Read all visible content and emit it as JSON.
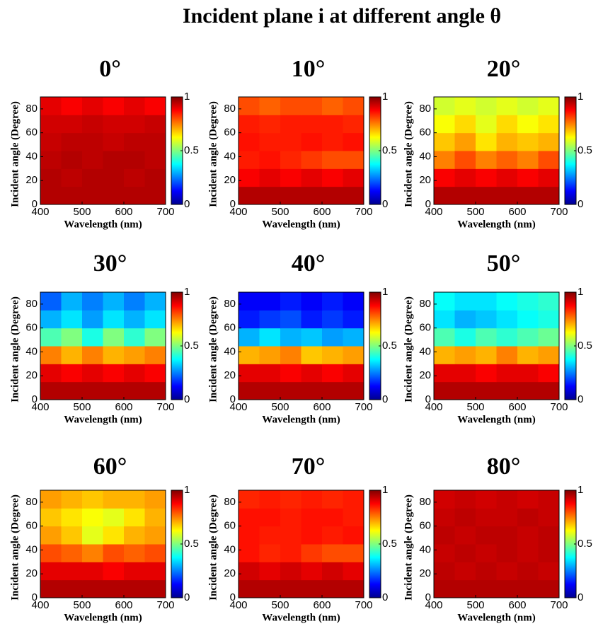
{
  "title": "Incident plane i at different angle θ",
  "chart_data": [
    {
      "type": "heatmap",
      "title": "0°",
      "xlabel": "Wavelength (nm)",
      "ylabel": "Incident angle (Degree)",
      "xlim": [
        400,
        700
      ],
      "xticks": [
        400,
        500,
        600,
        700
      ],
      "ylim": [
        0,
        90
      ],
      "yticks": [
        0,
        20,
        40,
        60,
        80
      ],
      "clim": [
        0,
        1
      ],
      "cticks": [
        0,
        0.5,
        1
      ],
      "colormap": "jet",
      "z": [
        [
          0.95,
          0.95,
          0.95,
          0.95,
          0.95,
          0.95
        ],
        [
          0.95,
          0.94,
          0.95,
          0.95,
          0.94,
          0.95
        ],
        [
          0.94,
          0.95,
          0.94,
          0.95,
          0.95,
          0.94
        ],
        [
          0.93,
          0.94,
          0.94,
          0.93,
          0.94,
          0.94
        ],
        [
          0.92,
          0.92,
          0.93,
          0.92,
          0.92,
          0.93
        ],
        [
          0.9,
          0.88,
          0.9,
          0.88,
          0.9,
          0.88
        ]
      ]
    },
    {
      "type": "heatmap",
      "title": "10°",
      "xlabel": "Wavelength (nm)",
      "ylabel": "Incident angle (Degree)",
      "xlim": [
        400,
        700
      ],
      "xticks": [
        400,
        500,
        600,
        700
      ],
      "ylim": [
        0,
        90
      ],
      "yticks": [
        0,
        20,
        40,
        60,
        80
      ],
      "clim": [
        0,
        1
      ],
      "cticks": [
        0,
        0.5,
        1
      ],
      "colormap": "jet",
      "z": [
        [
          0.95,
          0.95,
          0.95,
          0.95,
          0.95,
          0.95
        ],
        [
          0.88,
          0.9,
          0.88,
          0.9,
          0.88,
          0.9
        ],
        [
          0.85,
          0.86,
          0.84,
          0.82,
          0.8,
          0.8
        ],
        [
          0.86,
          0.85,
          0.85,
          0.86,
          0.85,
          0.86
        ],
        [
          0.85,
          0.84,
          0.85,
          0.85,
          0.85,
          0.84
        ],
        [
          0.8,
          0.78,
          0.8,
          0.8,
          0.78,
          0.8
        ]
      ]
    },
    {
      "type": "heatmap",
      "title": "20°",
      "xlabel": "Wavelength (nm)",
      "ylabel": "Incident angle (Degree)",
      "xlim": [
        400,
        700
      ],
      "xticks": [
        400,
        500,
        600,
        700
      ],
      "ylim": [
        0,
        90
      ],
      "yticks": [
        0,
        20,
        40,
        60,
        80
      ],
      "clim": [
        0,
        1
      ],
      "cticks": [
        0,
        0.5,
        1
      ],
      "colormap": "jet",
      "z": [
        [
          0.95,
          0.95,
          0.95,
          0.95,
          0.95,
          0.95
        ],
        [
          0.88,
          0.9,
          0.88,
          0.9,
          0.88,
          0.9
        ],
        [
          0.75,
          0.8,
          0.75,
          0.78,
          0.75,
          0.8
        ],
        [
          0.68,
          0.72,
          0.65,
          0.7,
          0.68,
          0.7
        ],
        [
          0.62,
          0.66,
          0.6,
          0.66,
          0.62,
          0.65
        ],
        [
          0.58,
          0.6,
          0.58,
          0.6,
          0.58,
          0.6
        ]
      ]
    },
    {
      "type": "heatmap",
      "title": "30°",
      "xlabel": "Wavelength (nm)",
      "ylabel": "Incident angle (Degree)",
      "xlim": [
        400,
        700
      ],
      "xticks": [
        400,
        500,
        600,
        700
      ],
      "ylim": [
        0,
        90
      ],
      "yticks": [
        0,
        20,
        40,
        60,
        80
      ],
      "clim": [
        0,
        1
      ],
      "cticks": [
        0,
        0.5,
        1
      ],
      "colormap": "jet",
      "z": [
        [
          0.95,
          0.95,
          0.95,
          0.95,
          0.95,
          0.95
        ],
        [
          0.9,
          0.88,
          0.9,
          0.88,
          0.9,
          0.88
        ],
        [
          0.75,
          0.7,
          0.75,
          0.7,
          0.72,
          0.75
        ],
        [
          0.45,
          0.5,
          0.4,
          0.5,
          0.42,
          0.5
        ],
        [
          0.3,
          0.35,
          0.28,
          0.35,
          0.3,
          0.35
        ],
        [
          0.22,
          0.3,
          0.25,
          0.3,
          0.25,
          0.3
        ]
      ]
    },
    {
      "type": "heatmap",
      "title": "40°",
      "xlabel": "Wavelength (nm)",
      "ylabel": "Incident angle (Degree)",
      "xlim": [
        400,
        700
      ],
      "xticks": [
        400,
        500,
        600,
        700
      ],
      "ylim": [
        0,
        90
      ],
      "yticks": [
        0,
        20,
        40,
        60,
        80
      ],
      "clim": [
        0,
        1
      ],
      "cticks": [
        0,
        0.5,
        1
      ],
      "colormap": "jet",
      "z": [
        [
          0.95,
          0.95,
          0.95,
          0.95,
          0.95,
          0.95
        ],
        [
          0.9,
          0.9,
          0.88,
          0.9,
          0.88,
          0.9
        ],
        [
          0.7,
          0.72,
          0.75,
          0.68,
          0.7,
          0.72
        ],
        [
          0.3,
          0.35,
          0.3,
          0.32,
          0.28,
          0.3
        ],
        [
          0.15,
          0.18,
          0.2,
          0.15,
          0.18,
          0.15
        ],
        [
          0.12,
          0.12,
          0.15,
          0.12,
          0.15,
          0.12
        ]
      ]
    },
    {
      "type": "heatmap",
      "title": "50°",
      "xlabel": "Wavelength (nm)",
      "ylabel": "Incident angle (Degree)",
      "xlim": [
        400,
        700
      ],
      "xticks": [
        400,
        500,
        600,
        700
      ],
      "ylim": [
        0,
        90
      ],
      "yticks": [
        0,
        20,
        40,
        60,
        80
      ],
      "clim": [
        0,
        1
      ],
      "cticks": [
        0,
        0.5,
        1
      ],
      "colormap": "jet",
      "z": [
        [
          0.95,
          0.95,
          0.95,
          0.95,
          0.95,
          0.95
        ],
        [
          0.9,
          0.9,
          0.88,
          0.9,
          0.9,
          0.88
        ],
        [
          0.7,
          0.72,
          0.7,
          0.75,
          0.7,
          0.72
        ],
        [
          0.45,
          0.4,
          0.45,
          0.42,
          0.45,
          0.48
        ],
        [
          0.35,
          0.3,
          0.32,
          0.35,
          0.38,
          0.4
        ],
        [
          0.38,
          0.35,
          0.35,
          0.38,
          0.4,
          0.42
        ]
      ]
    },
    {
      "type": "heatmap",
      "title": "60°",
      "xlabel": "Wavelength (nm)",
      "ylabel": "Incident angle (Degree)",
      "xlim": [
        400,
        700
      ],
      "xticks": [
        400,
        500,
        600,
        700
      ],
      "ylim": [
        0,
        90
      ],
      "yticks": [
        0,
        20,
        40,
        60,
        80
      ],
      "clim": [
        0,
        1
      ],
      "cticks": [
        0,
        0.5,
        1
      ],
      "colormap": "jet",
      "z": [
        [
          0.95,
          0.95,
          0.95,
          0.95,
          0.95,
          0.95
        ],
        [
          0.9,
          0.9,
          0.9,
          0.88,
          0.9,
          0.9
        ],
        [
          0.8,
          0.78,
          0.75,
          0.8,
          0.78,
          0.8
        ],
        [
          0.72,
          0.68,
          0.6,
          0.65,
          0.7,
          0.72
        ],
        [
          0.68,
          0.65,
          0.62,
          0.6,
          0.65,
          0.7
        ],
        [
          0.72,
          0.7,
          0.68,
          0.7,
          0.7,
          0.72
        ]
      ]
    },
    {
      "type": "heatmap",
      "title": "70°",
      "xlabel": "Wavelength (nm)",
      "ylabel": "Incident angle (Degree)",
      "xlim": [
        400,
        700
      ],
      "xticks": [
        400,
        500,
        600,
        700
      ],
      "ylim": [
        0,
        90
      ],
      "yticks": [
        0,
        20,
        40,
        60,
        80
      ],
      "clim": [
        0,
        1
      ],
      "cticks": [
        0,
        0.5,
        1
      ],
      "colormap": "jet",
      "z": [
        [
          0.95,
          0.95,
          0.95,
          0.95,
          0.95,
          0.95
        ],
        [
          0.92,
          0.9,
          0.92,
          0.9,
          0.92,
          0.9
        ],
        [
          0.86,
          0.84,
          0.85,
          0.82,
          0.8,
          0.8
        ],
        [
          0.86,
          0.85,
          0.85,
          0.86,
          0.85,
          0.86
        ],
        [
          0.86,
          0.86,
          0.85,
          0.86,
          0.86,
          0.85
        ],
        [
          0.84,
          0.85,
          0.84,
          0.85,
          0.84,
          0.85
        ]
      ]
    },
    {
      "type": "heatmap",
      "title": "80°",
      "xlabel": "Wavelength (nm)",
      "ylabel": "Incident angle (Degree)",
      "xlim": [
        400,
        700
      ],
      "xticks": [
        400,
        500,
        600,
        700
      ],
      "ylim": [
        0,
        90
      ],
      "yticks": [
        0,
        20,
        40,
        60,
        80
      ],
      "clim": [
        0,
        1
      ],
      "cticks": [
        0,
        0.5,
        1
      ],
      "colormap": "jet",
      "z": [
        [
          0.95,
          0.95,
          0.95,
          0.95,
          0.95,
          0.95
        ],
        [
          0.94,
          0.93,
          0.94,
          0.93,
          0.94,
          0.93
        ],
        [
          0.93,
          0.94,
          0.93,
          0.94,
          0.93,
          0.94
        ],
        [
          0.94,
          0.93,
          0.94,
          0.94,
          0.93,
          0.94
        ],
        [
          0.93,
          0.94,
          0.93,
          0.93,
          0.94,
          0.93
        ],
        [
          0.92,
          0.93,
          0.92,
          0.93,
          0.92,
          0.93
        ]
      ]
    }
  ]
}
